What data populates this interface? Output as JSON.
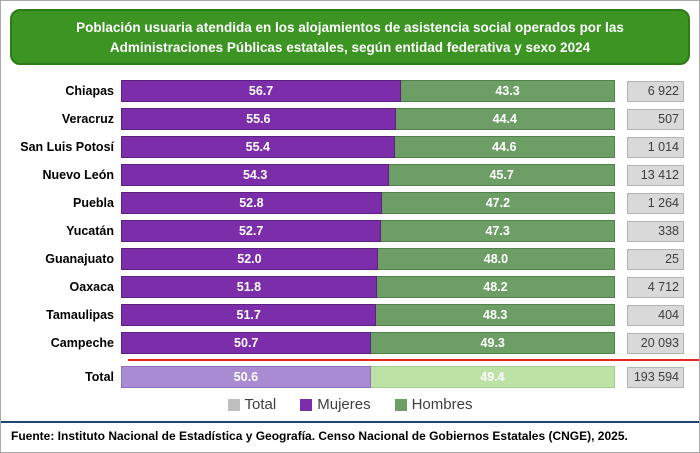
{
  "header": {
    "title_line1": "Población usuaria atendida en los alojamientos de asistencia social operados por las",
    "title_line2": "Administraciones Públicas estatales, según entidad federativa y sexo 2024"
  },
  "chart_data": {
    "type": "bar",
    "orientation": "horizontal",
    "stacked": true,
    "unit": "percent",
    "xlim": [
      0,
      100
    ],
    "title": "Población usuaria atendida en los alojamientos de asistencia social operados por las Administraciones Públicas estatales, según entidad federativa y sexo 2024",
    "series_names": [
      "Mujeres",
      "Hombres"
    ],
    "rows": [
      {
        "entity": "Chiapas",
        "mujeres": "56.7",
        "hombres": "43.3",
        "total": "6 922"
      },
      {
        "entity": "Veracruz",
        "mujeres": "55.6",
        "hombres": "44.4",
        "total": "507"
      },
      {
        "entity": "San Luis Potosí",
        "mujeres": "55.4",
        "hombres": "44.6",
        "total": "1 014"
      },
      {
        "entity": "Nuevo León",
        "mujeres": "54.3",
        "hombres": "45.7",
        "total": "13 412"
      },
      {
        "entity": "Puebla",
        "mujeres": "52.8",
        "hombres": "47.2",
        "total": "1 264"
      },
      {
        "entity": "Yucatán",
        "mujeres": "52.7",
        "hombres": "47.3",
        "total": "338"
      },
      {
        "entity": "Guanajuato",
        "mujeres": "52.0",
        "hombres": "48.0",
        "total": "25"
      },
      {
        "entity": "Oaxaca",
        "mujeres": "51.8",
        "hombres": "48.2",
        "total": "4 712"
      },
      {
        "entity": "Tamaulipas",
        "mujeres": "51.7",
        "hombres": "48.3",
        "total": "404"
      },
      {
        "entity": "Campeche",
        "mujeres": "50.7",
        "hombres": "49.3",
        "total": "20 093"
      },
      {
        "entity": "Total",
        "mujeres": "50.6",
        "hombres": "49.4",
        "total": "193 594"
      }
    ],
    "legend": [
      {
        "label": "Total",
        "color": "#bfbfbf"
      },
      {
        "label": "Mujeres",
        "color": "#7c2daa"
      },
      {
        "label": "Hombres",
        "color": "#6d9e66"
      }
    ],
    "legend_position": "bottom"
  },
  "colors": {
    "mujeres": "#7c2daa",
    "hombres": "#6d9e66",
    "mujeres_total_row": "#a98bd4",
    "hombres_total_row": "#bce2a6",
    "count_box_bg": "#d9d9d9",
    "header_green": "#3c9423",
    "separator_red": "#e8251d",
    "footer_divider_blue": "#1f4575"
  },
  "footer": {
    "source": "Fuente: Instituto Nacional de Estadística y Geografía. Censo Nacional de Gobiernos Estatales (CNGE), 2025."
  }
}
